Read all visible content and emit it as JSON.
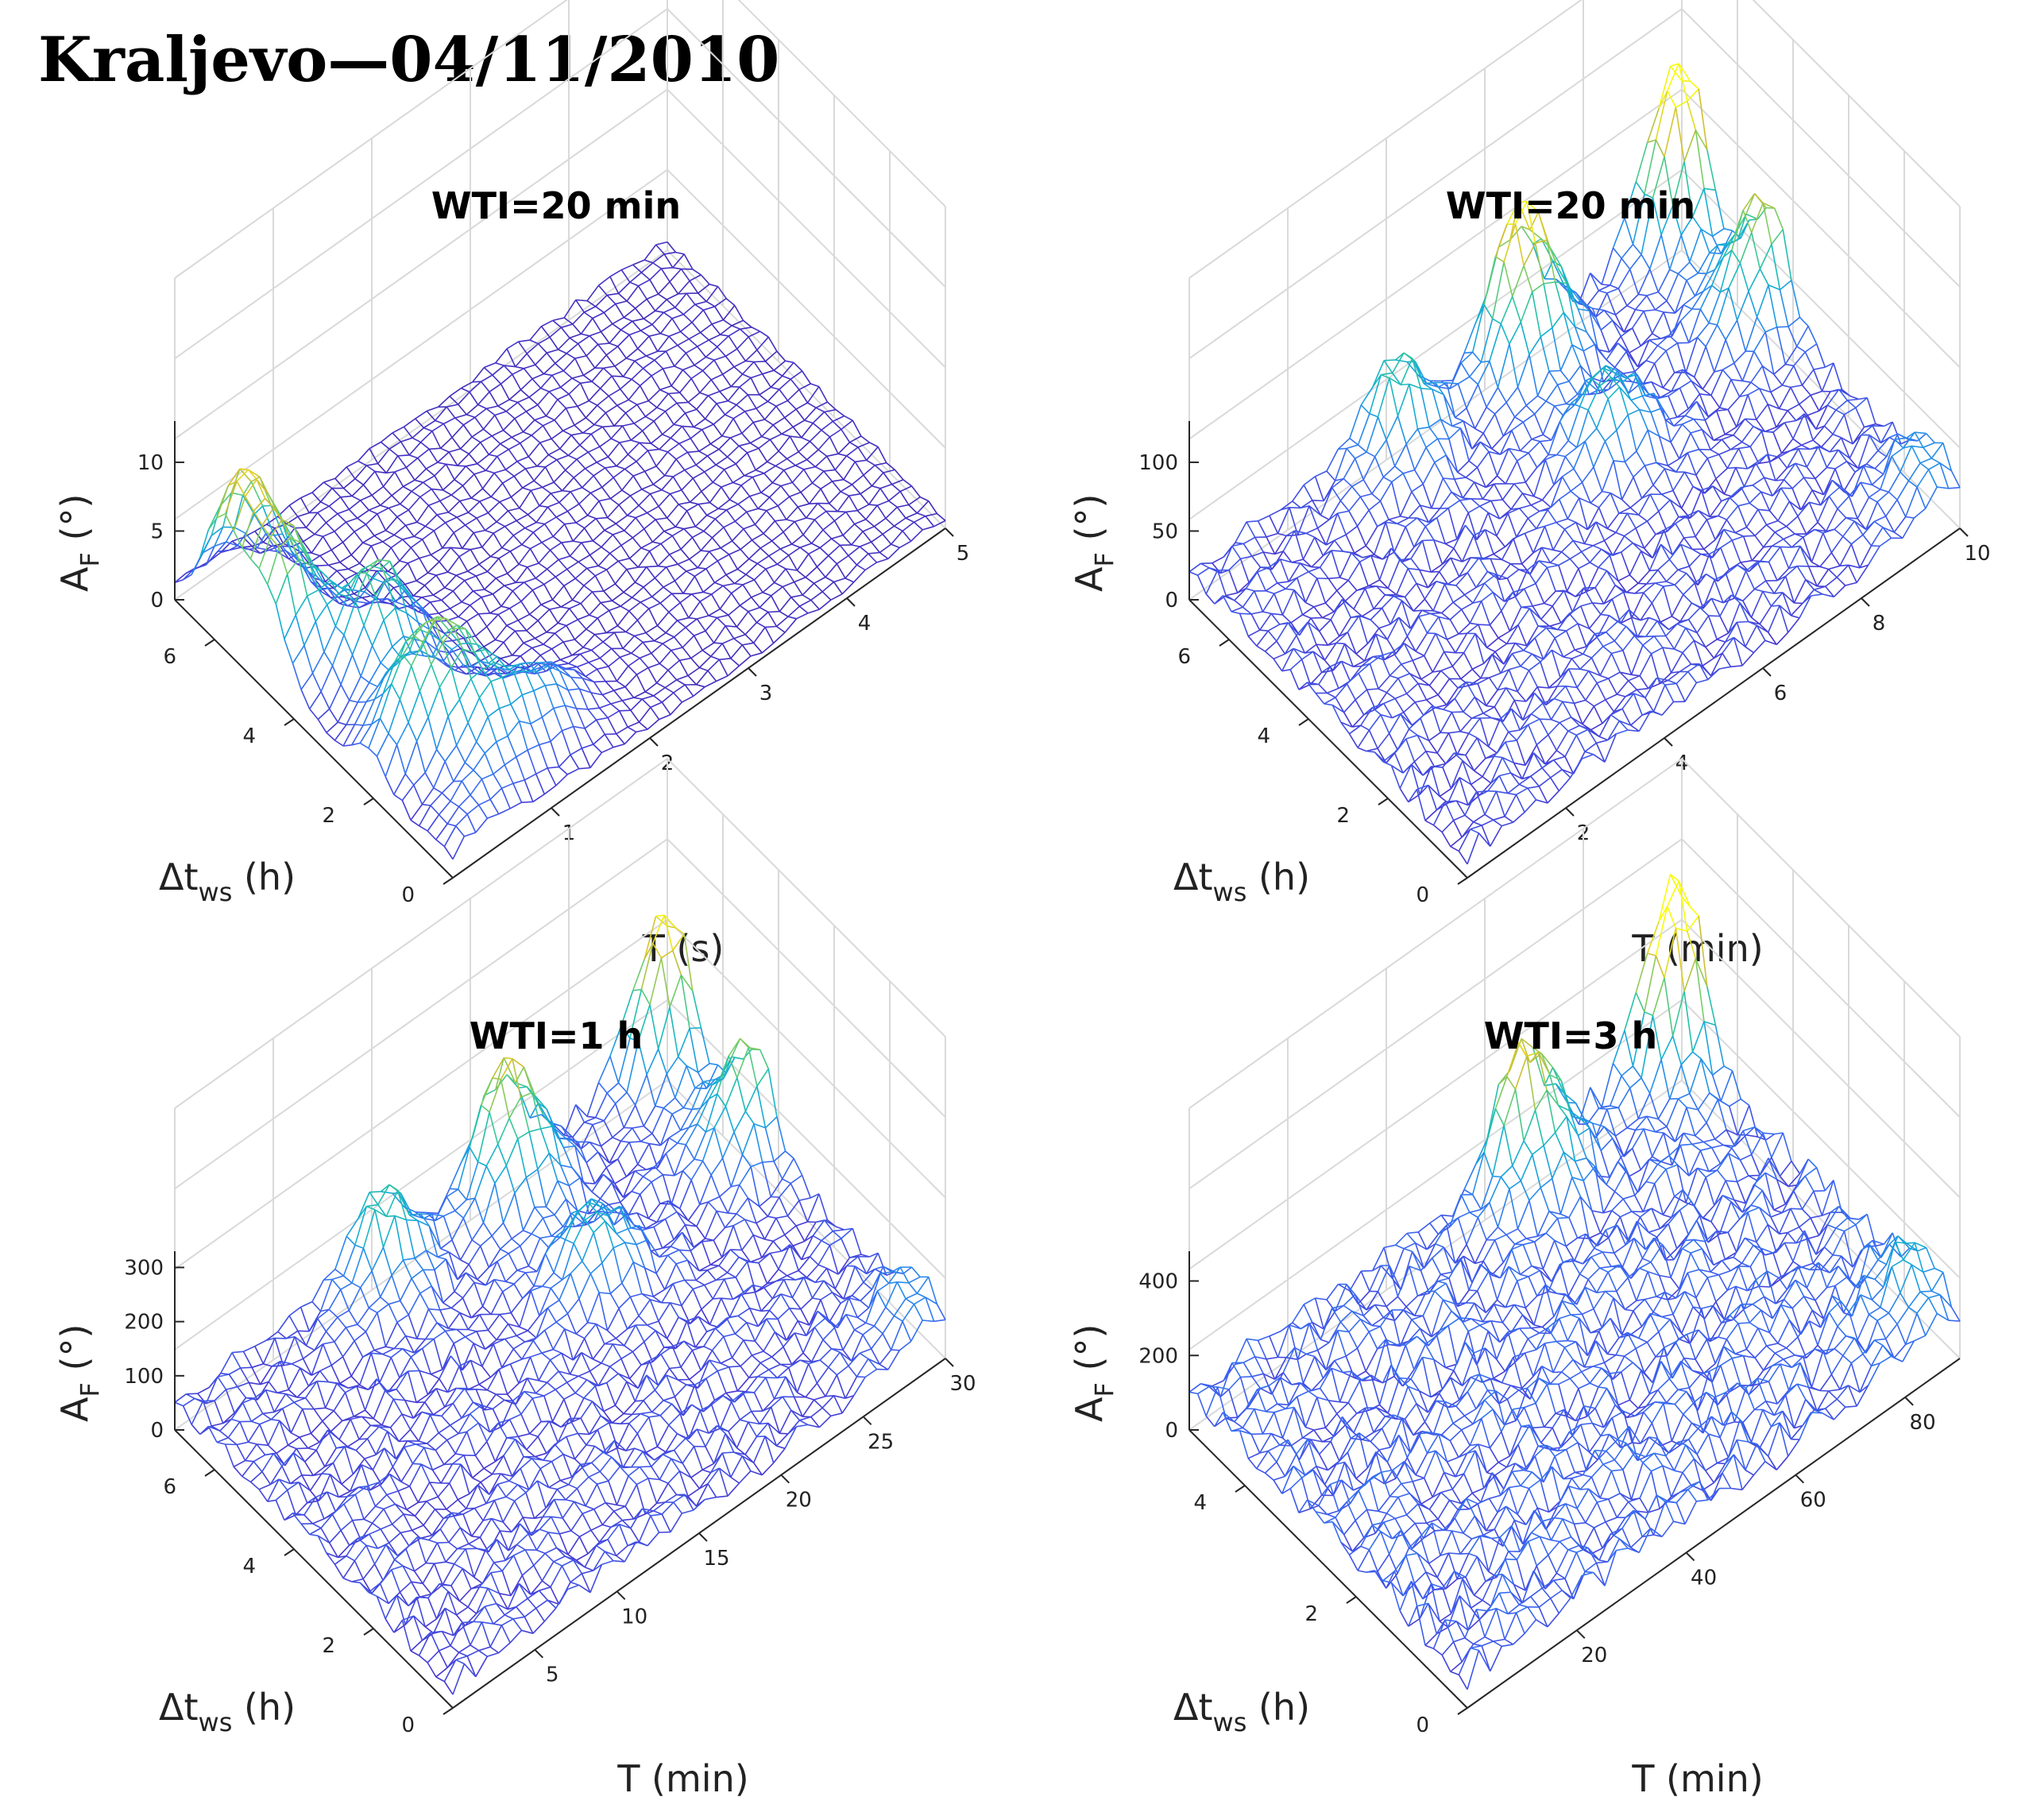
{
  "figure": {
    "title": "Kraljevo—04/11/2010"
  },
  "colors": {
    "low": "#3e26a8",
    "mid1": "#2f7dea",
    "mid2": "#1fb5c4",
    "mid3": "#6ccb5e",
    "high": "#f9fb0e"
  },
  "chart_data": [
    {
      "type": "surface3d",
      "title": "WTI=20 min",
      "xlabel": "T (s)",
      "ylabel": "Δt_ws (h)",
      "zlabel": "A_F (°)",
      "xlim": [
        0,
        5
      ],
      "ylim": [
        0,
        7
      ],
      "zlim": [
        0,
        13
      ],
      "colormax": 13,
      "xticks": [
        "1",
        "2",
        "3",
        "4",
        "5"
      ],
      "yticks": [
        "0",
        "2",
        "4",
        "6"
      ],
      "zticks": [
        "0",
        "5",
        "10"
      ],
      "grid": true,
      "peaks": [
        {
          "x": 0.2,
          "y": 5.8,
          "z": 10.5
        },
        {
          "x": 0.2,
          "y": 4.7,
          "z": 8.5
        },
        {
          "x": 0.7,
          "y": 3.6,
          "z": 8.0
        },
        {
          "x": 0.35,
          "y": 2.1,
          "z": 4.5
        },
        {
          "x": 0.7,
          "y": 1.9,
          "z": 6.5
        },
        {
          "x": 0.85,
          "y": 1.0,
          "z": 4.0
        },
        {
          "x": 1.4,
          "y": 1.1,
          "z": 3.5
        },
        {
          "x": 0.3,
          "y": 0.3,
          "z": 2.0
        }
      ],
      "base_level": 0.8
    },
    {
      "type": "surface3d",
      "title": "WTI=20 min",
      "xlabel": "T (min)",
      "ylabel": "Δt_ws (h)",
      "zlabel": "A_F (°)",
      "xlim": [
        0,
        10
      ],
      "ylim": [
        0,
        7
      ],
      "zlim": [
        0,
        130
      ],
      "colormax": 130,
      "xticks": [
        "2",
        "4",
        "6",
        "8",
        "10"
      ],
      "yticks": [
        "0",
        "2",
        "4",
        "6"
      ],
      "zticks": [
        "0",
        "50",
        "100"
      ],
      "grid": true,
      "peaks": [
        {
          "x": 9.8,
          "y": 6.8,
          "z": 125
        },
        {
          "x": 6.5,
          "y": 6.6,
          "z": 110
        },
        {
          "x": 9.8,
          "y": 4.8,
          "z": 85
        },
        {
          "x": 4.0,
          "y": 6.7,
          "z": 60
        },
        {
          "x": 6.5,
          "y": 4.5,
          "z": 50
        },
        {
          "x": 9.8,
          "y": 0.6,
          "z": 35
        }
      ],
      "base_level": 20
    },
    {
      "type": "surface3d",
      "title": "WTI=1 h",
      "xlabel": "T (min)",
      "ylabel": "Δt_ws (h)",
      "zlabel": "A_F (°)",
      "xlim": [
        0,
        30
      ],
      "ylim": [
        0,
        7
      ],
      "zlim": [
        0,
        330
      ],
      "colormax": 330,
      "xticks": [
        "5",
        "10",
        "15",
        "20",
        "25",
        "30"
      ],
      "yticks": [
        "0",
        "2",
        "4",
        "6"
      ],
      "zticks": [
        "0",
        "100",
        "200",
        "300"
      ],
      "grid": true,
      "peaks": [
        {
          "x": 29.5,
          "y": 6.8,
          "z": 280
        },
        {
          "x": 19.5,
          "y": 6.6,
          "z": 230
        },
        {
          "x": 29.5,
          "y": 4.8,
          "z": 190
        },
        {
          "x": 12.0,
          "y": 6.7,
          "z": 150
        },
        {
          "x": 19.5,
          "y": 4.5,
          "z": 120
        },
        {
          "x": 29.5,
          "y": 0.6,
          "z": 80
        }
      ],
      "base_level": 50
    },
    {
      "type": "surface3d",
      "title": "WTI=3 h",
      "xlabel": "T (min)",
      "ylabel": "Δt_ws (h)",
      "zlabel": "A_F (°)",
      "xlim": [
        0,
        90
      ],
      "ylim": [
        0,
        5
      ],
      "zlim": [
        0,
        480
      ],
      "colormax": 480,
      "xticks": [
        "20",
        "40",
        "60",
        "80"
      ],
      "yticks": [
        "0",
        "2",
        "4"
      ],
      "zticks": [
        "0",
        "200",
        "400"
      ],
      "grid": true,
      "peaks": [
        {
          "x": 88,
          "y": 4.9,
          "z": 470
        },
        {
          "x": 60,
          "y": 4.8,
          "z": 330
        },
        {
          "x": 88,
          "y": 0.6,
          "z": 140
        }
      ],
      "base_level": 100
    }
  ]
}
